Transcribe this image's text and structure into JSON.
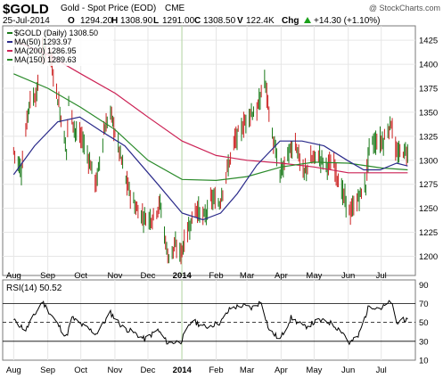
{
  "header": {
    "symbol": "$GOLD",
    "description": "Gold - Spot Price (EOD)",
    "exchange": "CME",
    "watermark": "@ StockCharts.com"
  },
  "quote": {
    "date": "25-Jul-2014",
    "o_label": "O",
    "open": "1294.20",
    "h_label": "H",
    "high": "1308.90",
    "l_label": "L",
    "low": "1291.00",
    "c_label": "C",
    "close": "1308.50",
    "v_label": "V",
    "volume": "122.4K",
    "chg_label": "Chg",
    "chg": "+14.30 (+1.10%)",
    "chg_arrow": "up-triangle-icon"
  },
  "colors": {
    "price": "#1a7a1a",
    "ma50": "#2a2a8a",
    "ma200": "#cc2255",
    "ma150": "#2a8a2a",
    "rsi": "#000000",
    "chg_up": "#1aa01a",
    "grid": "#e6e6e6"
  },
  "chart_data": [
    {
      "type": "ohlc-bar-with-moving-averages",
      "legend": [
        {
          "label": "$GOLD (Daily) 1308.50",
          "color": "#1a7a1a"
        },
        {
          "label": "MA(50) 1293.97",
          "color": "#2a2a8a"
        },
        {
          "label": "MA(200) 1286.95",
          "color": "#cc2255"
        },
        {
          "label": "MA(150) 1289.63",
          "color": "#2a8a2a"
        }
      ],
      "legend_position": "top-left",
      "ylim": [
        1180,
        1440
      ],
      "y_ticks": [
        1200,
        1225,
        1250,
        1275,
        1300,
        1325,
        1350,
        1375,
        1400,
        1425
      ],
      "x_tick_labels": [
        "Aug",
        "Sep",
        "Oct",
        "Nov",
        "Dec",
        "2014",
        "Feb",
        "Mar",
        "Apr",
        "May",
        "Jun",
        "Jul"
      ],
      "grid": true,
      "price_path": [
        [
          "2013-08-01",
          1310
        ],
        [
          "2013-08-08",
          1290
        ],
        [
          "2013-08-15",
          1360
        ],
        [
          "2013-08-22",
          1370
        ],
        [
          "2013-08-27",
          1415
        ],
        [
          "2013-09-03",
          1410
        ],
        [
          "2013-09-10",
          1365
        ],
        [
          "2013-09-18",
          1310
        ],
        [
          "2013-09-20",
          1360
        ],
        [
          "2013-09-26",
          1330
        ],
        [
          "2013-10-03",
          1320
        ],
        [
          "2013-10-10",
          1295
        ],
        [
          "2013-10-15",
          1275
        ],
        [
          "2013-10-22",
          1330
        ],
        [
          "2013-10-28",
          1350
        ],
        [
          "2013-11-04",
          1315
        ],
        [
          "2013-11-12",
          1275
        ],
        [
          "2013-11-20",
          1250
        ],
        [
          "2013-11-28",
          1240
        ],
        [
          "2013-12-05",
          1240
        ],
        [
          "2013-12-12",
          1255
        ],
        [
          "2013-12-19",
          1200
        ],
        [
          "2013-12-26",
          1210
        ],
        [
          "2013-12-31",
          1203
        ],
        [
          "2014-01-07",
          1230
        ],
        [
          "2014-01-14",
          1250
        ],
        [
          "2014-01-21",
          1240
        ],
        [
          "2014-01-28",
          1260
        ],
        [
          "2014-02-04",
          1255
        ],
        [
          "2014-02-11",
          1290
        ],
        [
          "2014-02-18",
          1320
        ],
        [
          "2014-02-25",
          1335
        ],
        [
          "2014-03-04",
          1350
        ],
        [
          "2014-03-10",
          1350
        ],
        [
          "2014-03-17",
          1385
        ],
        [
          "2014-03-24",
          1325
        ],
        [
          "2014-03-31",
          1285
        ],
        [
          "2014-04-07",
          1305
        ],
        [
          "2014-04-14",
          1320
        ],
        [
          "2014-04-21",
          1285
        ],
        [
          "2014-04-28",
          1300
        ],
        [
          "2014-05-05",
          1305
        ],
        [
          "2014-05-12",
          1295
        ],
        [
          "2014-05-19",
          1295
        ],
        [
          "2014-05-27",
          1265
        ],
        [
          "2014-06-03",
          1245
        ],
        [
          "2014-06-10",
          1260
        ],
        [
          "2014-06-17",
          1275
        ],
        [
          "2014-06-20",
          1315
        ],
        [
          "2014-06-27",
          1320
        ],
        [
          "2014-07-03",
          1320
        ],
        [
          "2014-07-10",
          1340
        ],
        [
          "2014-07-15",
          1305
        ],
        [
          "2014-07-21",
          1310
        ],
        [
          "2014-07-25",
          1308.5
        ]
      ],
      "ma50_path": [
        [
          "2013-08-01",
          1285
        ],
        [
          "2013-08-20",
          1315
        ],
        [
          "2013-09-10",
          1340
        ],
        [
          "2013-09-30",
          1345
        ],
        [
          "2013-10-20",
          1330
        ],
        [
          "2013-11-10",
          1315
        ],
        [
          "2013-11-25",
          1295
        ],
        [
          "2013-12-10",
          1275
        ],
        [
          "2014-01-01",
          1245
        ],
        [
          "2014-01-20",
          1238
        ],
        [
          "2014-02-05",
          1245
        ],
        [
          "2014-02-20",
          1265
        ],
        [
          "2014-03-10",
          1295
        ],
        [
          "2014-03-31",
          1320
        ],
        [
          "2014-04-20",
          1320
        ],
        [
          "2014-05-10",
          1315
        ],
        [
          "2014-05-31",
          1300
        ],
        [
          "2014-06-15",
          1290
        ],
        [
          "2014-06-30",
          1290
        ],
        [
          "2014-07-15",
          1297
        ],
        [
          "2014-07-25",
          1294
        ]
      ],
      "ma200_path": [
        [
          "2013-08-01",
          1425
        ],
        [
          "2013-09-01",
          1410
        ],
        [
          "2013-10-01",
          1390
        ],
        [
          "2013-11-01",
          1370
        ],
        [
          "2013-12-01",
          1345
        ],
        [
          "2014-01-01",
          1320
        ],
        [
          "2014-02-01",
          1305
        ],
        [
          "2014-03-01",
          1300
        ],
        [
          "2014-04-01",
          1297
        ],
        [
          "2014-05-01",
          1293
        ],
        [
          "2014-06-01",
          1287
        ],
        [
          "2014-07-01",
          1287
        ],
        [
          "2014-07-25",
          1287
        ]
      ],
      "ma150_path": [
        [
          "2013-08-01",
          1390
        ],
        [
          "2013-09-01",
          1375
        ],
        [
          "2013-10-01",
          1355
        ],
        [
          "2013-11-01",
          1332
        ],
        [
          "2013-12-01",
          1300
        ],
        [
          "2014-01-01",
          1280
        ],
        [
          "2014-02-01",
          1279
        ],
        [
          "2014-03-01",
          1283
        ],
        [
          "2014-04-01",
          1293
        ],
        [
          "2014-05-01",
          1298
        ],
        [
          "2014-06-01",
          1297
        ],
        [
          "2014-07-01",
          1292
        ],
        [
          "2014-07-25",
          1290
        ]
      ]
    },
    {
      "type": "line",
      "title": "RSI(14) 50.52",
      "ylim": [
        10,
        95
      ],
      "y_ticks": [
        10,
        30,
        50,
        70,
        90
      ],
      "reference_lines": [
        30,
        50,
        70
      ],
      "x_tick_labels": [
        "Aug",
        "Sep",
        "Oct",
        "Nov",
        "Dec",
        "2014",
        "Feb",
        "Mar",
        "Apr",
        "May",
        "Jun",
        "Jul"
      ],
      "rsi_path": [
        [
          "2013-08-01",
          52
        ],
        [
          "2013-08-12",
          42
        ],
        [
          "2013-08-27",
          72
        ],
        [
          "2013-09-10",
          48
        ],
        [
          "2013-09-18",
          35
        ],
        [
          "2013-09-23",
          55
        ],
        [
          "2013-10-01",
          48
        ],
        [
          "2013-10-15",
          38
        ],
        [
          "2013-10-28",
          60
        ],
        [
          "2013-11-08",
          45
        ],
        [
          "2013-11-20",
          38
        ],
        [
          "2013-11-28",
          32
        ],
        [
          "2013-12-10",
          42
        ],
        [
          "2013-12-19",
          28
        ],
        [
          "2013-12-31",
          30
        ],
        [
          "2014-01-10",
          52
        ],
        [
          "2014-01-22",
          45
        ],
        [
          "2014-02-05",
          50
        ],
        [
          "2014-02-14",
          65
        ],
        [
          "2014-02-25",
          68
        ],
        [
          "2014-03-05",
          65
        ],
        [
          "2014-03-14",
          72
        ],
        [
          "2014-03-21",
          42
        ],
        [
          "2014-03-31",
          32
        ],
        [
          "2014-04-10",
          55
        ],
        [
          "2014-04-22",
          45
        ],
        [
          "2014-05-05",
          52
        ],
        [
          "2014-05-15",
          50
        ],
        [
          "2014-05-27",
          40
        ],
        [
          "2014-06-02",
          28
        ],
        [
          "2014-06-10",
          35
        ],
        [
          "2014-06-20",
          68
        ],
        [
          "2014-07-01",
          65
        ],
        [
          "2014-07-10",
          72
        ],
        [
          "2014-07-15",
          48
        ],
        [
          "2014-07-21",
          55
        ],
        [
          "2014-07-25",
          50.52
        ]
      ]
    }
  ]
}
